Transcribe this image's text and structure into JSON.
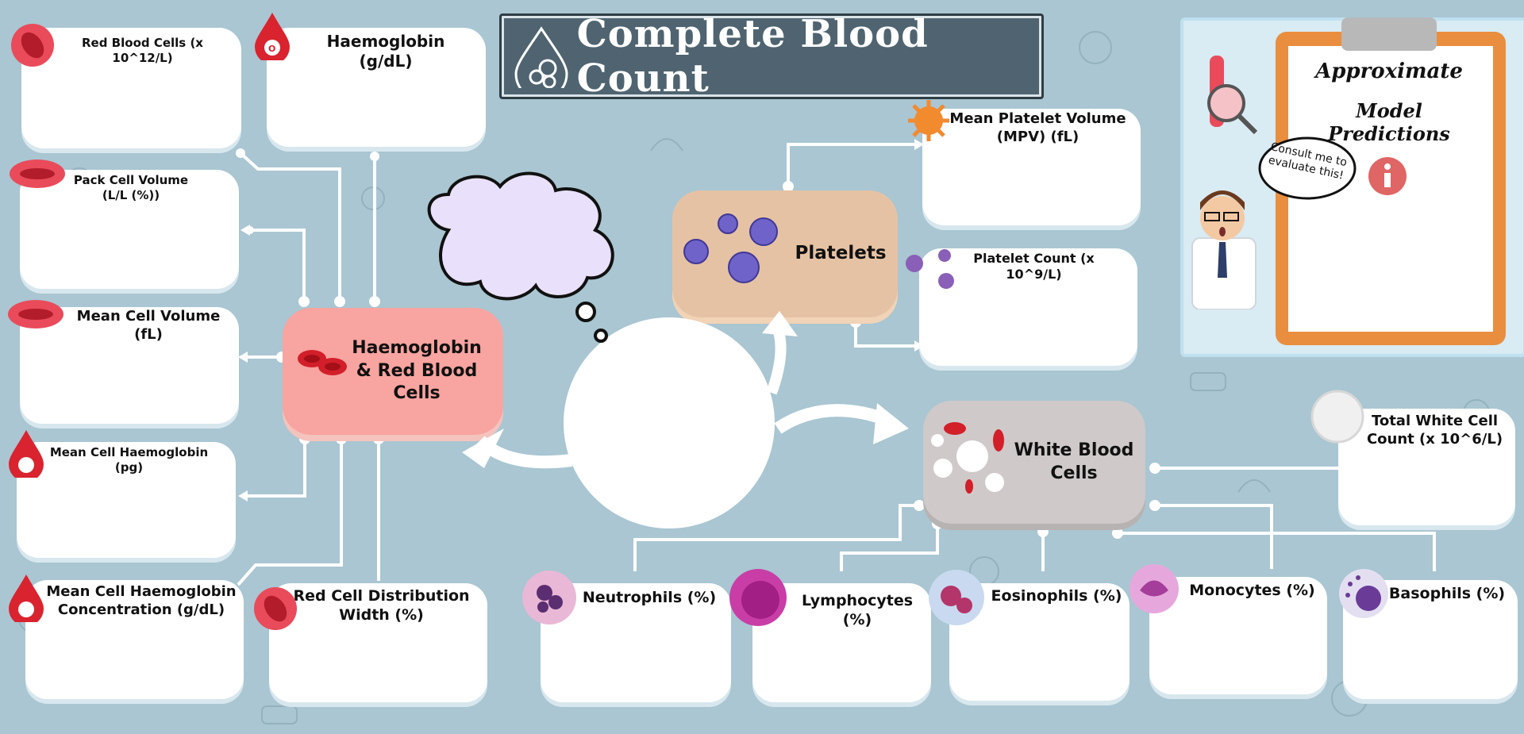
{
  "title": "Complete Blood Count",
  "clipboard": {
    "line1": "Approximate",
    "line2": "Model Predictions",
    "bubble": "Consult me to evaluate this!"
  },
  "hubs": {
    "rbc": "Haemoglobin & Red Blood Cells",
    "platelets": "Platelets",
    "wbc": "White Blood Cells"
  },
  "cards": {
    "rbc_count": "Red Blood Cells (x 10^12/L)",
    "haemoglobin": "Haemoglobin (g/dL)",
    "pcv": "Pack Cell Volume (L/L (%))",
    "mcv": "Mean Cell Volume (fL)",
    "mch": "Mean Cell Haemoglobin (pg)",
    "mchc": "Mean Cell Haemoglobin Concentration (g/dL)",
    "rdw": "Red Cell Distribution Width (%)",
    "mpv": "Mean Platelet Volume (MPV) (fL)",
    "plt": "Platelet Count (x 10^9/L)",
    "twcc": "Total White Cell Count (x 10^6/L)",
    "neut": "Neutrophils (%)",
    "lymph": "Lymphocytes (%)",
    "eos": "Eosinophils (%)",
    "mono": "Monocytes (%)",
    "baso": "Basophils (%)"
  },
  "colors": {
    "background": "#a9c6d2",
    "rbc_hub": "#f8a4a0",
    "platelet_hub": "#e6c2a4",
    "wbc_hub": "#cfc9c9",
    "clipboard": "#e98e3f"
  }
}
